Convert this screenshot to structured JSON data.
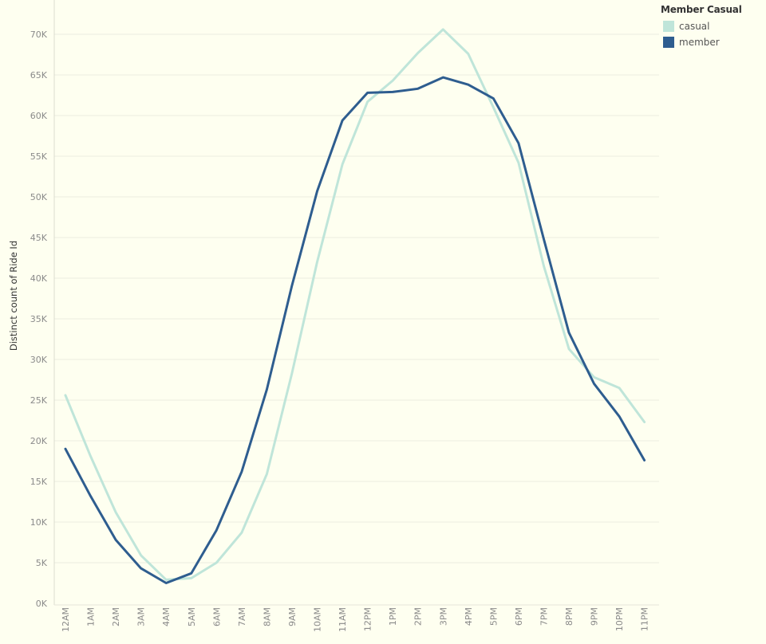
{
  "chart_data": {
    "type": "line",
    "ylabel": "Distinct count of Ride Id",
    "xlabel": "",
    "x": [
      "12AM",
      "1AM",
      "2AM",
      "3AM",
      "4AM",
      "5AM",
      "6AM",
      "7AM",
      "8AM",
      "9AM",
      "10AM",
      "11AM",
      "12PM",
      "1PM",
      "2PM",
      "3PM",
      "4PM",
      "5PM",
      "6PM",
      "7PM",
      "8PM",
      "9PM",
      "10PM",
      "11PM"
    ],
    "ylim": [
      0,
      70000
    ],
    "yticks": [
      0,
      5000,
      10000,
      15000,
      20000,
      25000,
      30000,
      35000,
      40000,
      45000,
      50000,
      55000,
      60000,
      65000,
      70000
    ],
    "ytick_labels": [
      "0K",
      "5K",
      "10K",
      "15K",
      "20K",
      "25K",
      "30K",
      "35K",
      "40K",
      "45K",
      "50K",
      "55K",
      "60K",
      "65K",
      "70K"
    ],
    "grid": true,
    "legend": {
      "title": "Member Casual",
      "position": "top-right"
    },
    "series": [
      {
        "name": "casual",
        "color": "#bfe5d9",
        "values": [
          25600,
          18100,
          11200,
          5900,
          2900,
          3100,
          5000,
          8700,
          15900,
          28300,
          42000,
          54000,
          61700,
          64300,
          67700,
          70600,
          67600,
          61000,
          54200,
          41500,
          31300,
          27800,
          26500,
          22300
        ]
      },
      {
        "name": "member",
        "color": "#2e5d8f",
        "values": [
          19000,
          13200,
          7800,
          4300,
          2500,
          3700,
          9000,
          16200,
          26300,
          39100,
          50700,
          59400,
          62800,
          62900,
          63300,
          64700,
          63800,
          62100,
          56600,
          44800,
          33300,
          27000,
          23000,
          17600
        ]
      }
    ]
  }
}
